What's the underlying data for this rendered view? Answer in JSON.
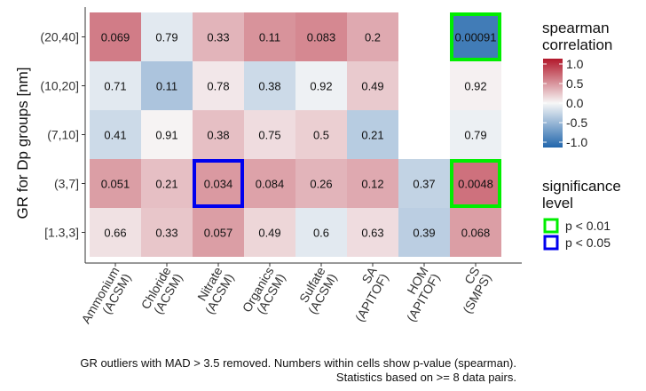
{
  "chart_data": {
    "type": "heatmap",
    "ylabel": "GR for Dp groups [nm]",
    "xlabel": "",
    "y_categories": [
      "(20,40]",
      "(10,20]",
      "(7,10]",
      "(3,7]",
      "[1.3,3]"
    ],
    "x_categories": [
      [
        "Ammonium",
        "(ACSM)"
      ],
      [
        "Chloride",
        "(ACSM)"
      ],
      [
        "Nitrate",
        "(ACSM)"
      ],
      [
        "Organics",
        "(ACSM)"
      ],
      [
        "Sulfate",
        "(ACSM)"
      ],
      [
        "SA",
        "(APITOF)"
      ],
      [
        "HOM",
        "(APITOF)"
      ],
      [
        "CS",
        "(SMPS)"
      ]
    ],
    "cells": [
      {
        "row": "(20,40]",
        "col": 0,
        "correlation": 0.55,
        "p": "0.069"
      },
      {
        "row": "(20,40]",
        "col": 1,
        "correlation": -0.1,
        "p": "0.79"
      },
      {
        "row": "(20,40]",
        "col": 2,
        "correlation": 0.3,
        "p": "0.33"
      },
      {
        "row": "(20,40]",
        "col": 3,
        "correlation": 0.45,
        "p": "0.11"
      },
      {
        "row": "(20,40]",
        "col": 4,
        "correlation": 0.5,
        "p": "0.083"
      },
      {
        "row": "(20,40]",
        "col": 5,
        "correlation": 0.35,
        "p": "0.2"
      },
      {
        "row": "(20,40]",
        "col": 7,
        "correlation": -0.85,
        "p": "0.00091",
        "significance": "p < 0.01"
      },
      {
        "row": "(10,20]",
        "col": 0,
        "correlation": -0.1,
        "p": "0.71"
      },
      {
        "row": "(10,20]",
        "col": 1,
        "correlation": -0.35,
        "p": "0.11"
      },
      {
        "row": "(10,20]",
        "col": 2,
        "correlation": 0.07,
        "p": "0.78"
      },
      {
        "row": "(10,20]",
        "col": 3,
        "correlation": -0.2,
        "p": "0.38"
      },
      {
        "row": "(10,20]",
        "col": 4,
        "correlation": -0.04,
        "p": "0.92"
      },
      {
        "row": "(10,20]",
        "col": 5,
        "correlation": 0.2,
        "p": "0.49"
      },
      {
        "row": "(10,20]",
        "col": 7,
        "correlation": 0.03,
        "p": "0.92"
      },
      {
        "row": "(7,10]",
        "col": 0,
        "correlation": -0.2,
        "p": "0.41"
      },
      {
        "row": "(7,10]",
        "col": 1,
        "correlation": 0.02,
        "p": "0.91"
      },
      {
        "row": "(7,10]",
        "col": 2,
        "correlation": 0.25,
        "p": "0.38"
      },
      {
        "row": "(7,10]",
        "col": 3,
        "correlation": 0.12,
        "p": "0.75"
      },
      {
        "row": "(7,10]",
        "col": 4,
        "correlation": 0.18,
        "p": "0.5"
      },
      {
        "row": "(7,10]",
        "col": 5,
        "correlation": -0.3,
        "p": "0.21"
      },
      {
        "row": "(7,10]",
        "col": 7,
        "correlation": -0.05,
        "p": "0.79"
      },
      {
        "row": "(3,7]",
        "col": 0,
        "correlation": 0.4,
        "p": "0.051"
      },
      {
        "row": "(3,7]",
        "col": 1,
        "correlation": 0.25,
        "p": "0.21"
      },
      {
        "row": "(3,7]",
        "col": 2,
        "correlation": 0.42,
        "p": "0.034",
        "significance": "p < 0.05"
      },
      {
        "row": "(3,7]",
        "col": 3,
        "correlation": 0.38,
        "p": "0.084"
      },
      {
        "row": "(3,7]",
        "col": 4,
        "correlation": 0.3,
        "p": "0.26"
      },
      {
        "row": "(3,7]",
        "col": 5,
        "correlation": 0.35,
        "p": "0.12"
      },
      {
        "row": "(3,7]",
        "col": 6,
        "correlation": -0.25,
        "p": "0.37"
      },
      {
        "row": "(3,7]",
        "col": 7,
        "correlation": 0.6,
        "p": "0.0048",
        "significance": "p < 0.01"
      },
      {
        "row": "[1.3,3]",
        "col": 0,
        "correlation": 0.1,
        "p": "0.66"
      },
      {
        "row": "[1.3,3]",
        "col": 1,
        "correlation": 0.22,
        "p": "0.33"
      },
      {
        "row": "[1.3,3]",
        "col": 2,
        "correlation": 0.4,
        "p": "0.057"
      },
      {
        "row": "[1.3,3]",
        "col": 3,
        "correlation": 0.15,
        "p": "0.49"
      },
      {
        "row": "[1.3,3]",
        "col": 4,
        "correlation": -0.1,
        "p": "0.6"
      },
      {
        "row": "[1.3,3]",
        "col": 5,
        "correlation": 0.12,
        "p": "0.63"
      },
      {
        "row": "[1.3,3]",
        "col": 6,
        "correlation": -0.28,
        "p": "0.39"
      },
      {
        "row": "[1.3,3]",
        "col": 7,
        "correlation": 0.4,
        "p": "0.068"
      }
    ],
    "color_scale": {
      "title_lines": [
        "spearman",
        "correlation"
      ],
      "range": [
        -1,
        1
      ],
      "ticks": [
        "1.0",
        "0.5",
        "0.0",
        "-0.5",
        "-1.0"
      ],
      "low_color": "#2166ac",
      "mid_color": "#f7f7f7",
      "high_color": "#b2182b"
    },
    "significance_legend": {
      "title_lines": [
        "significance",
        "level"
      ],
      "entries": [
        {
          "label": "p < 0.01",
          "color": "#00ee00"
        },
        {
          "label": "p < 0.05",
          "color": "#0000ee"
        }
      ]
    },
    "legend_position": "right",
    "grid": false
  },
  "caption": {
    "line1": "GR outliers with MAD > 3.5 removed. Numbers within cells show p-value (spearman).",
    "line2": "Statistics based on >= 8 data pairs."
  }
}
